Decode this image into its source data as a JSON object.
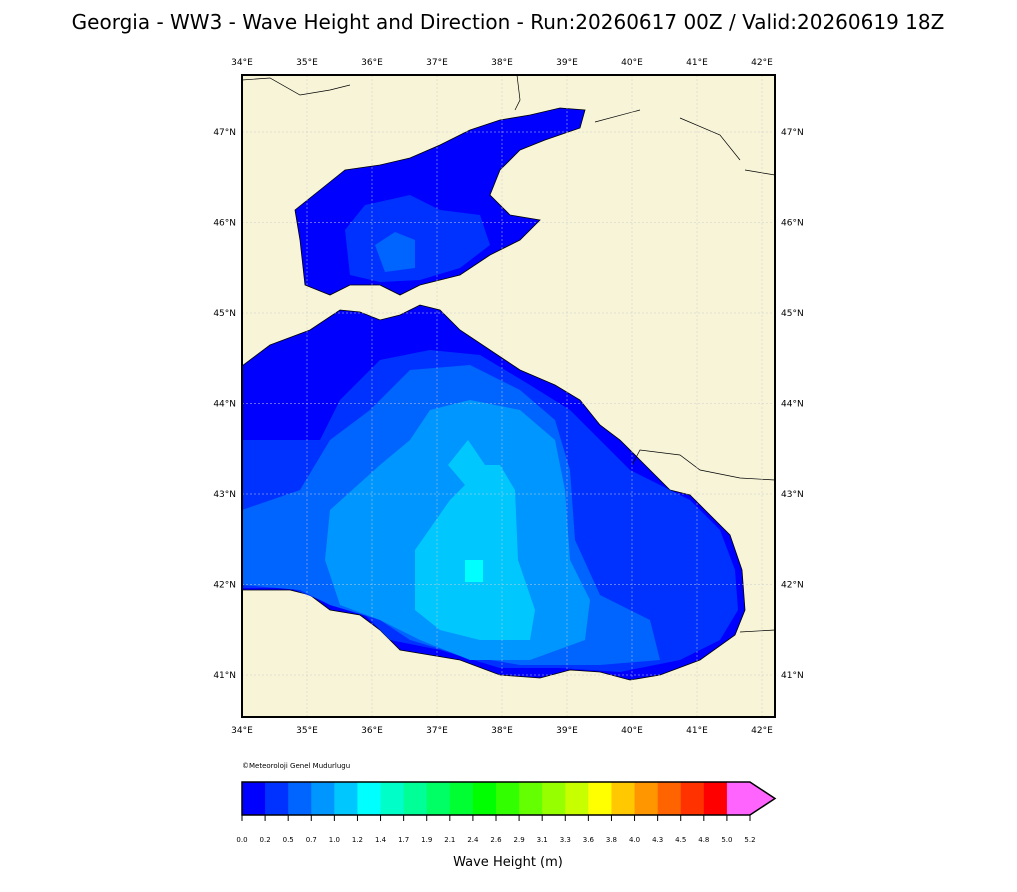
{
  "header": {
    "title": "Georgia - WW3 - Wave Height and Direction - Run:20260617 00Z / Valid:20260619 18Z"
  },
  "map": {
    "lon_labels": [
      "34°E",
      "35°E",
      "36°E",
      "37°E",
      "38°E",
      "39°E",
      "40°E",
      "41°E",
      "42°E"
    ],
    "lat_labels": [
      "41°N",
      "42°N",
      "43°N",
      "44°N",
      "45°N",
      "46°N",
      "47°N"
    ],
    "credit": "©Meteoroloji Genel Mudurlugu"
  },
  "colorbar": {
    "label": "Wave Height (m)",
    "ticks": [
      {
        "value": 0,
        "label": "0.0"
      },
      0.2,
      0.5,
      0.7,
      {
        "value": 1,
        "label": "1.0"
      },
      1.2,
      1.4,
      1.7,
      1.9,
      2.1,
      2.4,
      2.6,
      2.9,
      3.1,
      3.3,
      3.6,
      3.8,
      {
        "value": 4,
        "label": "4.0"
      },
      4.3,
      4.5,
      4.8,
      {
        "value": 5,
        "label": "5.0"
      },
      5.2
    ],
    "colors": [
      "#0000ff",
      "#0032ff",
      "#0064ff",
      "#0096ff",
      "#00c8ff",
      "#00ffff",
      "#00ffc8",
      "#00ff96",
      "#00ff64",
      "#00ff32",
      "#00ff00",
      "#32ff00",
      "#64ff00",
      "#96ff00",
      "#c8ff00",
      "#ffff00",
      "#ffc800",
      "#ff9600",
      "#ff6400",
      "#ff3200",
      "#ff0000",
      "#ff64ff"
    ]
  }
}
